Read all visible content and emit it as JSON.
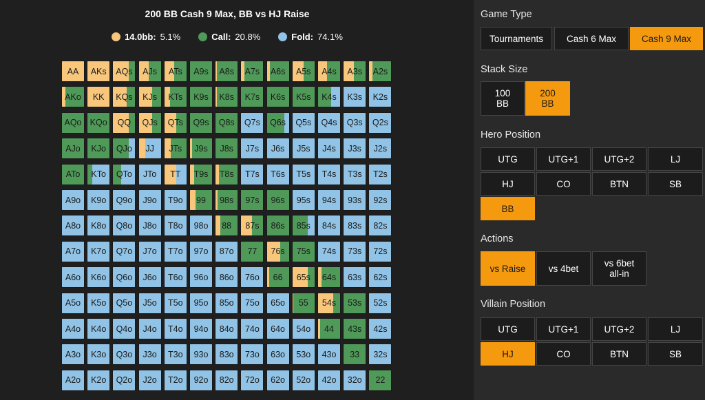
{
  "title": "200 BB Cash 9 Max, BB vs HJ Raise",
  "colors": {
    "raise": "#f8c77c",
    "call": "#4f9a58",
    "fold": "#90c3e6",
    "active": "#f59a0f"
  },
  "legend": [
    {
      "label": "14.0bb:",
      "value": "5.1%",
      "color": "#f8c77c"
    },
    {
      "label": "Call:",
      "value": "20.8%",
      "color": "#4f9a58"
    },
    {
      "label": "Fold:",
      "value": "74.1%",
      "color": "#90c3e6"
    }
  ],
  "ranks": [
    "A",
    "K",
    "Q",
    "J",
    "T",
    "9",
    "8",
    "7",
    "6",
    "5",
    "4",
    "3",
    "2"
  ],
  "strategy": {
    "AA": [
      1,
      0,
      0
    ],
    "AKs": [
      1,
      0,
      0
    ],
    "AQs": [
      0.7,
      0.3,
      0
    ],
    "AJs": [
      0.45,
      0.55,
      0
    ],
    "ATs": [
      0.45,
      0.55,
      0
    ],
    "A9s": [
      0,
      1,
      0
    ],
    "A8s": [
      0.05,
      0.95,
      0
    ],
    "A7s": [
      0.15,
      0.85,
      0
    ],
    "A6s": [
      0.15,
      0.85,
      0
    ],
    "A5s": [
      0.5,
      0.5,
      0
    ],
    "A4s": [
      0.4,
      0.6,
      0
    ],
    "A3s": [
      0.45,
      0.55,
      0
    ],
    "A2s": [
      0.15,
      0.85,
      0
    ],
    "AKo": [
      0.15,
      0.85,
      0
    ],
    "KK": [
      1,
      0,
      0
    ],
    "KQs": [
      0.6,
      0.4,
      0
    ],
    "KJs": [
      0.6,
      0.4,
      0
    ],
    "KTs": [
      0.25,
      0.75,
      0
    ],
    "K9s": [
      0,
      1,
      0
    ],
    "K8s": [
      0.05,
      0.95,
      0
    ],
    "K7s": [
      0,
      1,
      0
    ],
    "K6s": [
      0,
      1,
      0
    ],
    "K5s": [
      0,
      1,
      0
    ],
    "K4s": [
      0,
      0.6,
      0.4
    ],
    "K3s": [
      0,
      0,
      1
    ],
    "K2s": [
      0,
      0,
      1
    ],
    "AQo": [
      0,
      1,
      0
    ],
    "KQo": [
      0,
      1,
      0
    ],
    "QQ": [
      0.7,
      0.3,
      0
    ],
    "QJs": [
      0.6,
      0.4,
      0
    ],
    "QTs": [
      0.55,
      0.45,
      0
    ],
    "Q9s": [
      0,
      1,
      0
    ],
    "Q8s": [
      0,
      1,
      0
    ],
    "Q7s": [
      0,
      0,
      1
    ],
    "Q6s": [
      0,
      0.8,
      0.2
    ],
    "Q5s": [
      0,
      0,
      1
    ],
    "Q4s": [
      0,
      0,
      1
    ],
    "Q3s": [
      0,
      0,
      1
    ],
    "Q2s": [
      0,
      0,
      1
    ],
    "AJo": [
      0,
      1,
      0
    ],
    "KJo": [
      0,
      1,
      0
    ],
    "QJo": [
      0,
      0.7,
      0.3
    ],
    "JJ": [
      0.3,
      0,
      0.7
    ],
    "JTs": [
      0.3,
      0.7,
      0
    ],
    "J9s": [
      0.1,
      0.9,
      0
    ],
    "J8s": [
      0,
      1,
      0
    ],
    "J7s": [
      0,
      0,
      1
    ],
    "J6s": [
      0,
      0,
      1
    ],
    "J5s": [
      0,
      0,
      1
    ],
    "J4s": [
      0,
      0,
      1
    ],
    "J3s": [
      0,
      0,
      1
    ],
    "J2s": [
      0,
      0,
      1
    ],
    "ATo": [
      0,
      1,
      0
    ],
    "KTo": [
      0,
      0.2,
      0.8
    ],
    "QTo": [
      0,
      0.35,
      0.65
    ],
    "JTo": [
      0,
      0,
      1
    ],
    "TT": [
      0.55,
      0,
      0.45
    ],
    "T9s": [
      0.2,
      0.8,
      0
    ],
    "T8s": [
      0.15,
      0.85,
      0
    ],
    "T7s": [
      0,
      0,
      1
    ],
    "T6s": [
      0,
      0,
      1
    ],
    "T5s": [
      0,
      0,
      1
    ],
    "T4s": [
      0,
      0,
      1
    ],
    "T3s": [
      0,
      0,
      1
    ],
    "T2s": [
      0,
      0,
      1
    ],
    "A9o": [
      0,
      0,
      1
    ],
    "K9o": [
      0,
      0,
      1
    ],
    "Q9o": [
      0,
      0,
      1
    ],
    "J9o": [
      0,
      0,
      1
    ],
    "T9o": [
      0,
      0,
      1
    ],
    "99": [
      0.25,
      0.75,
      0
    ],
    "98s": [
      0.1,
      0.9,
      0
    ],
    "97s": [
      0,
      1,
      0
    ],
    "96s": [
      0,
      1,
      0
    ],
    "95s": [
      0,
      0,
      1
    ],
    "94s": [
      0,
      0,
      1
    ],
    "93s": [
      0,
      0,
      1
    ],
    "92s": [
      0,
      0,
      1
    ],
    "A8o": [
      0,
      0,
      1
    ],
    "K8o": [
      0,
      0,
      1
    ],
    "Q8o": [
      0,
      0,
      1
    ],
    "J8o": [
      0,
      0,
      1
    ],
    "T8o": [
      0,
      0,
      1
    ],
    "98o": [
      0,
      0,
      1
    ],
    "88": [
      0.2,
      0.8,
      0
    ],
    "87s": [
      0.5,
      0.5,
      0
    ],
    "86s": [
      0,
      1,
      0
    ],
    "85s": [
      0,
      0.7,
      0.3
    ],
    "84s": [
      0,
      0,
      1
    ],
    "83s": [
      0,
      0,
      1
    ],
    "82s": [
      0,
      0,
      1
    ],
    "A7o": [
      0,
      0,
      1
    ],
    "K7o": [
      0,
      0,
      1
    ],
    "Q7o": [
      0,
      0,
      1
    ],
    "J7o": [
      0,
      0,
      1
    ],
    "T7o": [
      0,
      0,
      1
    ],
    "97o": [
      0,
      0,
      1
    ],
    "87o": [
      0,
      0,
      1
    ],
    "77": [
      0,
      1,
      0
    ],
    "76s": [
      0.6,
      0.4,
      0
    ],
    "75s": [
      0,
      1,
      0
    ],
    "74s": [
      0,
      0,
      1
    ],
    "73s": [
      0,
      0,
      1
    ],
    "72s": [
      0,
      0,
      1
    ],
    "A6o": [
      0,
      0,
      1
    ],
    "K6o": [
      0,
      0,
      1
    ],
    "Q6o": [
      0,
      0,
      1
    ],
    "J6o": [
      0,
      0,
      1
    ],
    "T6o": [
      0,
      0,
      1
    ],
    "96o": [
      0,
      0,
      1
    ],
    "86o": [
      0,
      0,
      1
    ],
    "76o": [
      0,
      0,
      1
    ],
    "66": [
      0.1,
      0.9,
      0
    ],
    "65s": [
      0.7,
      0.3,
      0
    ],
    "64s": [
      0.15,
      0.85,
      0
    ],
    "63s": [
      0,
      0,
      1
    ],
    "62s": [
      0,
      0,
      1
    ],
    "A5o": [
      0,
      0,
      1
    ],
    "K5o": [
      0,
      0,
      1
    ],
    "Q5o": [
      0,
      0,
      1
    ],
    "J5o": [
      0,
      0,
      1
    ],
    "T5o": [
      0,
      0,
      1
    ],
    "95o": [
      0,
      0,
      1
    ],
    "85o": [
      0,
      0,
      1
    ],
    "75o": [
      0,
      0,
      1
    ],
    "65o": [
      0,
      0,
      1
    ],
    "55": [
      0.05,
      0.95,
      0
    ],
    "54s": [
      0.7,
      0.3,
      0
    ],
    "53s": [
      0,
      1,
      0
    ],
    "52s": [
      0,
      0,
      1
    ],
    "A4o": [
      0,
      0,
      1
    ],
    "K4o": [
      0,
      0,
      1
    ],
    "Q4o": [
      0,
      0,
      1
    ],
    "J4o": [
      0,
      0,
      1
    ],
    "T4o": [
      0,
      0,
      1
    ],
    "94o": [
      0,
      0,
      1
    ],
    "84o": [
      0,
      0,
      1
    ],
    "74o": [
      0,
      0,
      1
    ],
    "64o": [
      0,
      0,
      1
    ],
    "54o": [
      0,
      0,
      1
    ],
    "44": [
      0.1,
      0.9,
      0
    ],
    "43s": [
      0,
      1,
      0
    ],
    "42s": [
      0,
      0,
      1
    ],
    "A3o": [
      0,
      0,
      1
    ],
    "K3o": [
      0,
      0,
      1
    ],
    "Q3o": [
      0,
      0,
      1
    ],
    "J3o": [
      0,
      0,
      1
    ],
    "T3o": [
      0,
      0,
      1
    ],
    "93o": [
      0,
      0,
      1
    ],
    "83o": [
      0,
      0,
      1
    ],
    "73o": [
      0,
      0,
      1
    ],
    "63o": [
      0,
      0,
      1
    ],
    "53o": [
      0,
      0,
      1
    ],
    "43o": [
      0,
      0,
      1
    ],
    "33": [
      0,
      1,
      0
    ],
    "32s": [
      0,
      0,
      1
    ],
    "A2o": [
      0,
      0,
      1
    ],
    "K2o": [
      0,
      0,
      1
    ],
    "Q2o": [
      0,
      0,
      1
    ],
    "J2o": [
      0,
      0,
      1
    ],
    "T2o": [
      0,
      0,
      1
    ],
    "92o": [
      0,
      0,
      1
    ],
    "82o": [
      0,
      0,
      1
    ],
    "72o": [
      0,
      0,
      1
    ],
    "62o": [
      0,
      0,
      1
    ],
    "52o": [
      0,
      0,
      1
    ],
    "42o": [
      0,
      0,
      1
    ],
    "32o": [
      0,
      0,
      1
    ],
    "22": [
      0,
      1,
      0
    ]
  },
  "panel": {
    "game_type": {
      "label": "Game Type",
      "options": [
        "Tournaments",
        "Cash 6 Max",
        "Cash 9 Max"
      ],
      "selected": 2
    },
    "stack_size": {
      "label": "Stack Size",
      "options": [
        "100\nBB",
        "200\nBB"
      ],
      "selected": 1
    },
    "hero_position": {
      "label": "Hero Position",
      "options": [
        "UTG",
        "UTG+1",
        "UTG+2",
        "LJ",
        "HJ",
        "CO",
        "BTN",
        "SB",
        "BB"
      ],
      "selected": 8
    },
    "actions": {
      "label": "Actions",
      "options": [
        "vs Raise",
        "vs 4bet",
        "vs 6bet\nall-in"
      ],
      "selected": 0
    },
    "villain_position": {
      "label": "Villain Position",
      "options": [
        "UTG",
        "UTG+1",
        "UTG+2",
        "LJ",
        "HJ",
        "CO",
        "BTN",
        "SB"
      ],
      "selected": 4
    }
  }
}
